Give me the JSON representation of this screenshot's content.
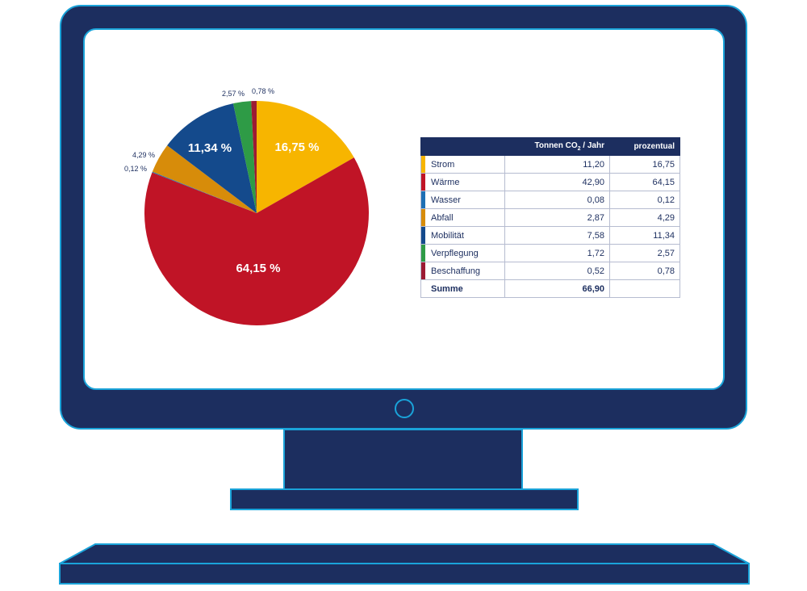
{
  "chart_data": {
    "type": "pie",
    "slices": [
      {
        "label": "Strom",
        "value": 16.75,
        "display": "16,75 %",
        "color": "#f7b500"
      },
      {
        "label": "Wärme",
        "value": 64.15,
        "display": "64,15 %",
        "color": "#c01426"
      },
      {
        "label": "Wasser",
        "value": 0.12,
        "display": "0,12 %",
        "color": "#1d6fb4"
      },
      {
        "label": "Abfall",
        "value": 4.29,
        "display": "4,29 %",
        "color": "#d78c0a"
      },
      {
        "label": "Mobilität",
        "value": 11.34,
        "display": "11,34 %",
        "color": "#144a8c"
      },
      {
        "label": "Verpflegung",
        "value": 2.57,
        "display": "2,57 %",
        "color": "#2e9b46"
      },
      {
        "label": "Beschaffung",
        "value": 0.78,
        "display": "0,78 %",
        "color": "#9c1a33"
      }
    ]
  },
  "table": {
    "headers": [
      "",
      "Tonnen CO₂ / Jahr",
      "prozentual"
    ],
    "rows": [
      {
        "name": "Strom",
        "tonnen": "11,20",
        "prozent": "16,75",
        "color": "#f7b500"
      },
      {
        "name": "Wärme",
        "tonnen": "42,90",
        "prozent": "64,15",
        "color": "#c01426"
      },
      {
        "name": "Wasser",
        "tonnen": "0,08",
        "prozent": "0,12",
        "color": "#1d6fb4"
      },
      {
        "name": "Abfall",
        "tonnen": "2,87",
        "prozent": "4,29",
        "color": "#d78c0a"
      },
      {
        "name": "Mobilität",
        "tonnen": "7,58",
        "prozent": "11,34",
        "color": "#144a8c"
      },
      {
        "name": "Verpflegung",
        "tonnen": "1,72",
        "prozent": "2,57",
        "color": "#2e9b46"
      },
      {
        "name": "Beschaffung",
        "tonnen": "0,52",
        "prozent": "0,78",
        "color": "#9c1a33"
      }
    ],
    "sum": {
      "name": "Summe",
      "tonnen": "66,90",
      "prozent": ""
    }
  }
}
